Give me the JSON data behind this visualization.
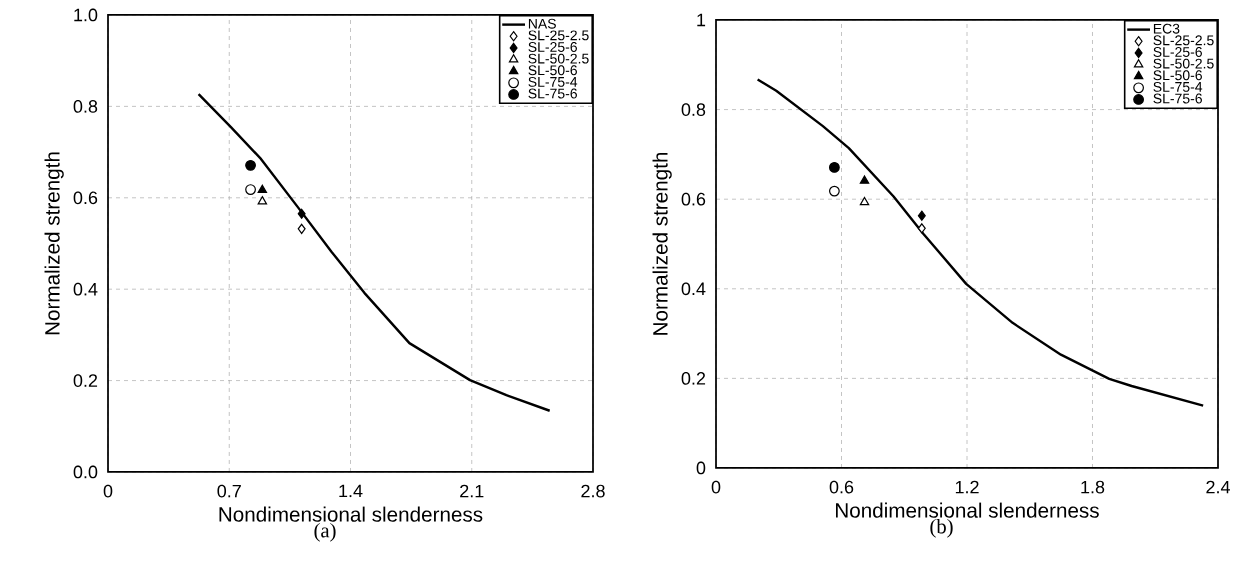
{
  "chart_data": [
    {
      "type": "scatter",
      "xlabel": "Nondimensional slenderness",
      "ylabel": "Normalized strength",
      "annotations": [
        "(a)"
      ],
      "xlim": [
        0,
        2.8
      ],
      "ylim": [
        0,
        1.0
      ],
      "xticks": [
        0,
        0.7,
        1.4,
        2.1,
        2.8
      ],
      "yticks": [
        {
          "value": 0,
          "label": "0.0"
        },
        0.2,
        0.4,
        0.6,
        0.8,
        {
          "value": 1.0,
          "label": "1.0"
        }
      ],
      "grid": true,
      "legend": "top right",
      "series": [
        {
          "name": "NAS",
          "type": "line",
          "color": "#000000",
          "x": [
            0.523,
            0.711,
            0.883,
            1.097,
            1.29,
            1.48,
            1.74,
            2.09,
            2.3,
            2.55
          ],
          "values": [
            0.827,
            0.754,
            0.685,
            0.579,
            0.482,
            0.392,
            0.282,
            0.201,
            0.168,
            0.134
          ]
        },
        {
          "name": "SL-25-2.5",
          "marker": "diamond",
          "color": "#ffffff",
          "x": [
            1.118
          ],
          "values": [
            0.532
          ]
        },
        {
          "name": "SL-25-6",
          "marker": "diamond",
          "color": "#000000",
          "x": [
            1.118
          ],
          "values": [
            0.565
          ]
        },
        {
          "name": "SL-50-2.5",
          "marker": "triangle",
          "color": "#ffffff",
          "x": [
            0.891
          ],
          "values": [
            0.592
          ]
        },
        {
          "name": "SL-50-6",
          "marker": "triangle",
          "color": "#000000",
          "x": [
            0.891
          ],
          "values": [
            0.617
          ]
        },
        {
          "name": "SL-75-4",
          "marker": "circle",
          "color": "#ffffff",
          "x": [
            0.823
          ],
          "values": [
            0.618
          ]
        },
        {
          "name": "SL-75-6",
          "marker": "circle",
          "color": "#000000",
          "x": [
            0.823
          ],
          "values": [
            0.671
          ]
        }
      ]
    },
    {
      "type": "scatter",
      "xlabel": "Nondimensional slenderness",
      "ylabel": "Normalized strength",
      "annotations": [
        "(b)"
      ],
      "xlim": [
        0,
        2.4
      ],
      "ylim": [
        0,
        1
      ],
      "xticks": [
        0,
        0.6,
        1.2,
        1.8,
        2.4
      ],
      "yticks": [
        0,
        0.2,
        0.4,
        0.6,
        0.8,
        1
      ],
      "grid": true,
      "legend": "top right",
      "series": [
        {
          "name": "EC3",
          "type": "line",
          "color": "#000000",
          "x": [
            0.199,
            0.288,
            0.511,
            0.635,
            0.849,
            0.991,
            1.196,
            1.418,
            1.649,
            1.88,
            1.987,
            2.329
          ],
          "values": [
            0.867,
            0.842,
            0.763,
            0.714,
            0.606,
            0.523,
            0.411,
            0.324,
            0.253,
            0.199,
            0.183,
            0.139
          ]
        },
        {
          "name": "SL-25-2.5",
          "marker": "diamond",
          "color": "#ffffff",
          "x": [
            0.984
          ],
          "values": [
            0.535
          ]
        },
        {
          "name": "SL-25-6",
          "marker": "diamond",
          "color": "#000000",
          "x": [
            0.984
          ],
          "values": [
            0.563
          ]
        },
        {
          "name": "SL-50-2.5",
          "marker": "triangle",
          "color": "#ffffff",
          "x": [
            0.71
          ],
          "values": [
            0.593
          ]
        },
        {
          "name": "SL-50-6",
          "marker": "triangle",
          "color": "#000000",
          "x": [
            0.71
          ],
          "values": [
            0.641
          ]
        },
        {
          "name": "SL-75-4",
          "marker": "circle",
          "color": "#ffffff",
          "x": [
            0.566
          ],
          "values": [
            0.618
          ]
        },
        {
          "name": "SL-75-6",
          "marker": "circle",
          "color": "#000000",
          "x": [
            0.566
          ],
          "values": [
            0.671
          ]
        }
      ]
    }
  ]
}
